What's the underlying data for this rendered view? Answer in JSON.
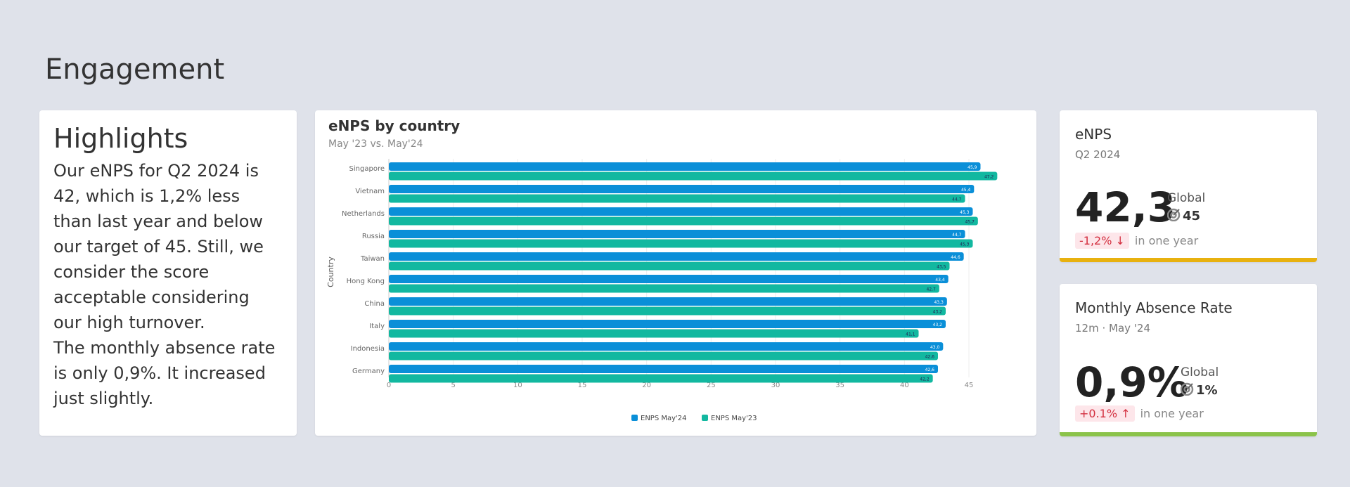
{
  "page": {
    "title": "Engagement"
  },
  "highlights": {
    "heading": "Highlights",
    "paragraphs": [
      "Our eNPS for Q2 2024 is 42, which is 1,2% less than last year and below our target of 45. Still, we consider the score acceptable considering our high turnover.",
      "The monthly absence rate is only 0,9%. It increased just slightly."
    ]
  },
  "chart_data": {
    "type": "bar",
    "orientation": "horizontal",
    "title": "eNPS by country",
    "subtitle": "May '23 vs. May'24",
    "ylabel": "Country",
    "xlabel": "",
    "categories": [
      "Singapore",
      "Vietnam",
      "Netherlands",
      "Russia",
      "Taiwan",
      "Hong Kong",
      "China",
      "Italy",
      "Indonesia",
      "Germany"
    ],
    "series": [
      {
        "name": "ENPS May'24",
        "color": "#0a8fd8",
        "values": [
          45.9,
          45.4,
          45.3,
          44.7,
          44.6,
          43.4,
          43.3,
          43.2,
          43.0,
          42.6
        ],
        "labels": [
          "45,9",
          "45,4",
          "45,3",
          "44,7",
          "44,6",
          "43,4",
          "43,3",
          "43,2",
          "43,0",
          "42,6"
        ]
      },
      {
        "name": "ENPS May'23",
        "color": "#12b8a0",
        "values": [
          47.2,
          44.7,
          45.7,
          45.3,
          43.5,
          42.7,
          43.2,
          41.1,
          42.6,
          42.2
        ],
        "labels": [
          "47,2",
          "44,7",
          "45,7",
          "45,3",
          "43,5",
          "42,7",
          "43,2",
          "41,1",
          "42,6",
          "42,2"
        ]
      }
    ],
    "xticks": [
      0,
      5,
      10,
      15,
      20,
      25,
      30,
      35,
      40,
      45
    ],
    "xlim": [
      0,
      47.5
    ],
    "grid": true,
    "legend": "bottom"
  },
  "kpis": [
    {
      "title": "eNPS",
      "subtitle": "Q2 2024",
      "value": "42,3",
      "global_label": "Global",
      "target_icon": "target-icon",
      "global_value": "45",
      "delta": "-1,2%",
      "delta_dir": "down",
      "delta_suffix": "in one year",
      "accent": "#e8b10f"
    },
    {
      "title": "Monthly Absence Rate",
      "subtitle": "12m · May '24",
      "value": "0,9%",
      "global_label": "Global",
      "target_icon": "target-icon",
      "global_value": "1%",
      "delta": "+0.1%",
      "delta_dir": "up",
      "delta_suffix": "in one year",
      "accent": "#8bc34a"
    }
  ]
}
